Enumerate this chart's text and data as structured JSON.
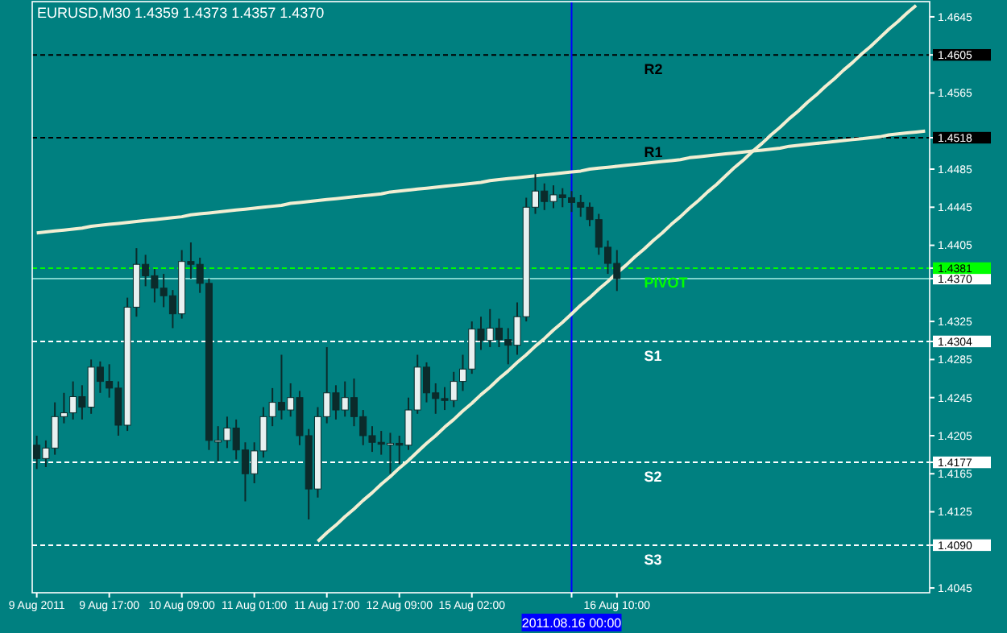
{
  "chart_data": {
    "type": "candlestick",
    "title": "EURUSD,M30  1.4359 1.4373 1.4357 1.4370",
    "color": "#0b2b2b",
    "categories": [
      "9 Aug 2011",
      null,
      null,
      null,
      null,
      null,
      null,
      null,
      "9 Aug 17:00",
      null,
      null,
      null,
      null,
      null,
      null,
      null,
      "10 Aug 09:00",
      null,
      null,
      null,
      null,
      null,
      null,
      null,
      "11 Aug 01:00",
      null,
      null,
      null,
      null,
      null,
      null,
      null,
      "11 Aug 17:00",
      null,
      null,
      null,
      null,
      null,
      null,
      null,
      "12 Aug 09:00",
      null,
      null,
      null,
      null,
      null,
      null,
      null,
      "15 Aug 02:00",
      null,
      null,
      null,
      null,
      null,
      null,
      null,
      null,
      null,
      null,
      "2011.08.16 00:00",
      null,
      null,
      null,
      null,
      "16 Aug 10:00",
      null,
      null,
      null,
      null,
      null,
      null,
      null,
      null,
      null,
      null,
      null,
      null,
      null,
      null,
      null,
      null,
      null,
      null,
      null,
      null,
      null,
      null,
      null,
      null,
      null,
      null,
      null,
      null,
      null,
      null,
      null,
      null,
      null,
      null
    ],
    "ohlc": [
      [
        1.4195,
        1.4205,
        1.417,
        1.4181
      ],
      [
        1.4181,
        1.42,
        1.4172,
        1.4192
      ],
      [
        1.4192,
        1.424,
        1.4185,
        1.4225
      ],
      [
        1.4225,
        1.425,
        1.4218,
        1.4229
      ],
      [
        1.4229,
        1.4262,
        1.4222,
        1.4246
      ],
      [
        1.4246,
        1.4258,
        1.4222,
        1.4235
      ],
      [
        1.4235,
        1.4285,
        1.4228,
        1.4277
      ],
      [
        1.4277,
        1.4283,
        1.425,
        1.4262
      ],
      [
        1.4262,
        1.428,
        1.4245,
        1.4255
      ],
      [
        1.4255,
        1.4262,
        1.4205,
        1.4216
      ],
      [
        1.4216,
        1.435,
        1.421,
        1.434
      ],
      [
        1.434,
        1.4402,
        1.433,
        1.4385
      ],
      [
        1.4385,
        1.4395,
        1.4362,
        1.4373
      ],
      [
        1.4373,
        1.438,
        1.4345,
        1.436
      ],
      [
        1.436,
        1.4375,
        1.434,
        1.4352
      ],
      [
        1.4352,
        1.4358,
        1.4318,
        1.4333
      ],
      [
        1.4333,
        1.44,
        1.4328,
        1.4388
      ],
      [
        1.4388,
        1.4408,
        1.437,
        1.4385
      ],
      [
        1.4385,
        1.4392,
        1.4355,
        1.4365
      ],
      [
        1.4365,
        1.437,
        1.419,
        1.42
      ],
      [
        1.42,
        1.4215,
        1.4178,
        1.42
      ],
      [
        1.42,
        1.4225,
        1.4192,
        1.4213
      ],
      [
        1.4213,
        1.4222,
        1.418,
        1.419
      ],
      [
        1.419,
        1.4198,
        1.4136,
        1.4165
      ],
      [
        1.4165,
        1.4198,
        1.4155,
        1.4189
      ],
      [
        1.4189,
        1.4235,
        1.4182,
        1.4225
      ],
      [
        1.4225,
        1.4255,
        1.4215,
        1.424
      ],
      [
        1.424,
        1.429,
        1.4222,
        1.4232
      ],
      [
        1.4232,
        1.426,
        1.4225,
        1.4245
      ],
      [
        1.4245,
        1.4252,
        1.4195,
        1.4205
      ],
      [
        1.4205,
        1.4212,
        1.4117,
        1.4149
      ],
      [
        1.4149,
        1.4235,
        1.414,
        1.4225
      ],
      [
        1.4225,
        1.4298,
        1.4218,
        1.425
      ],
      [
        1.425,
        1.4258,
        1.4222,
        1.4232
      ],
      [
        1.4232,
        1.4262,
        1.4225,
        1.4245
      ],
      [
        1.4245,
        1.4265,
        1.4215,
        1.4225
      ],
      [
        1.4225,
        1.4232,
        1.4195,
        1.4205
      ],
      [
        1.4205,
        1.4215,
        1.4188,
        1.4198
      ],
      [
        1.4198,
        1.421,
        1.4185,
        1.4196
      ],
      [
        1.4196,
        1.4208,
        1.4165,
        1.4197
      ],
      [
        1.4197,
        1.4205,
        1.4175,
        1.4195
      ],
      [
        1.4195,
        1.4245,
        1.419,
        1.4232
      ],
      [
        1.4232,
        1.429,
        1.4228,
        1.4277
      ],
      [
        1.4277,
        1.4282,
        1.424,
        1.425
      ],
      [
        1.425,
        1.426,
        1.4228,
        1.4244
      ],
      [
        1.4244,
        1.4256,
        1.4232,
        1.4242
      ],
      [
        1.4242,
        1.4272,
        1.4235,
        1.4262
      ],
      [
        1.4262,
        1.429,
        1.4252,
        1.4275
      ],
      [
        1.4275,
        1.4325,
        1.427,
        1.4317
      ],
      [
        1.4317,
        1.433,
        1.4295,
        1.4305
      ],
      [
        1.4305,
        1.4338,
        1.4298,
        1.4318
      ],
      [
        1.4318,
        1.4328,
        1.4298,
        1.4306
      ],
      [
        1.4306,
        1.4318,
        1.428,
        1.43
      ],
      [
        1.43,
        1.4345,
        1.429,
        1.433
      ],
      [
        1.433,
        1.4455,
        1.4325,
        1.4445
      ],
      [
        1.4445,
        1.448,
        1.4438,
        1.4462
      ],
      [
        1.4462,
        1.447,
        1.4442,
        1.4451
      ],
      [
        1.4451,
        1.4468,
        1.4444,
        1.4458
      ],
      [
        1.4458,
        1.4465,
        1.4445,
        1.4455
      ],
      [
        1.4455,
        1.4462,
        1.444,
        1.445
      ],
      [
        1.445,
        1.4458,
        1.4435,
        1.4445
      ],
      [
        1.4445,
        1.445,
        1.4425,
        1.4432
      ],
      [
        1.4432,
        1.4438,
        1.4395,
        1.4403
      ],
      [
        1.4403,
        1.441,
        1.4375,
        1.4386
      ],
      [
        1.4386,
        1.44,
        1.4357,
        1.437
      ],
      null,
      null,
      null,
      null,
      null,
      null,
      null,
      null,
      null,
      null,
      null,
      null,
      null,
      null,
      null,
      null,
      null,
      null,
      null,
      null,
      null,
      null,
      null,
      null,
      null,
      null,
      null,
      null,
      null,
      null,
      null,
      null,
      null,
      null
    ],
    "series": [
      {
        "type": "line",
        "color": "#f2eed2",
        "values": [
          1.4418,
          1.4419,
          1.442,
          1.4421,
          1.4422,
          1.4423,
          1.4425,
          1.4426,
          1.4427,
          1.4428,
          1.4429,
          1.443,
          1.4431,
          1.4432,
          1.4433,
          1.4434,
          1.4435,
          1.4437,
          1.4438,
          1.4439,
          1.444,
          1.4441,
          1.4442,
          1.4443,
          1.4444,
          1.4445,
          1.4446,
          1.4447,
          1.4449,
          1.445,
          1.4451,
          1.4452,
          1.4453,
          1.4454,
          1.4455,
          1.4456,
          1.4457,
          1.4458,
          1.4459,
          1.4461,
          1.4462,
          1.4463,
          1.4464,
          1.4465,
          1.4466,
          1.4467,
          1.4468,
          1.4469,
          1.447,
          1.4471,
          1.4473,
          1.4474,
          1.4475,
          1.4476,
          1.4477,
          1.4478,
          1.4479,
          1.448,
          1.4481,
          1.4482,
          1.4483,
          1.4485,
          1.4486,
          1.4487,
          1.4488,
          1.4489,
          1.449,
          1.4491,
          1.4492,
          1.4493,
          1.4494,
          1.4495,
          1.4497,
          1.4498,
          1.4499,
          1.45,
          1.4501,
          1.4502,
          1.4503,
          1.4504,
          1.4505,
          1.4506,
          1.4507,
          1.4509,
          1.451,
          1.4511,
          1.4512,
          1.4513,
          1.4514,
          1.4515,
          1.4516,
          1.4517,
          1.4518,
          1.4519,
          1.4521,
          1.4522,
          1.4523,
          1.4524,
          1.4525
        ]
      },
      {
        "type": "line",
        "color": "#f2eed2",
        "values": [
          null,
          null,
          null,
          null,
          null,
          null,
          null,
          null,
          null,
          null,
          null,
          null,
          null,
          null,
          null,
          null,
          null,
          null,
          null,
          null,
          null,
          null,
          null,
          null,
          null,
          null,
          null,
          null,
          null,
          null,
          null,
          1.4094,
          1.4103,
          1.4111,
          1.412,
          1.4128,
          1.4137,
          1.4145,
          1.4154,
          1.4162,
          1.4171,
          1.4179,
          1.4188,
          1.4197,
          1.4205,
          1.4214,
          1.4222,
          1.4231,
          1.4239,
          1.4248,
          1.4256,
          1.4265,
          1.4273,
          1.4282,
          1.429,
          1.4299,
          1.4307,
          1.4316,
          1.4324,
          1.4333,
          1.4342,
          1.435,
          1.4359,
          1.4367,
          1.4376,
          1.4384,
          1.4393,
          1.4401,
          1.441,
          1.4418,
          1.4427,
          1.4435,
          1.4444,
          1.4452,
          1.4461,
          1.4469,
          1.4478,
          1.4487,
          1.4495,
          1.4504,
          1.4512,
          1.4521,
          1.4529,
          1.4538,
          1.4546,
          1.4555,
          1.4563,
          1.4572,
          1.458,
          1.4589,
          1.4597,
          1.4606,
          1.4614,
          1.4623,
          1.4632,
          1.464,
          1.4649,
          1.4657,
          null
        ]
      }
    ],
    "ylim": [
      1.404,
      1.4661
    ],
    "yticks": [
      1.4045,
      {
        "value": 1.409,
        "label": "1.4090"
      },
      1.4125,
      1.4165,
      1.4177,
      1.4205,
      1.4245,
      1.4285,
      1.4304,
      1.4325,
      {
        "value": 1.437,
        "label": "1.4370"
      },
      1.4381,
      1.4405,
      1.4445,
      1.4485,
      1.4518,
      1.4565,
      1.4605,
      1.4645
    ],
    "ref_lines": [
      {
        "axis": "y",
        "value": 1.4605,
        "label": "R2",
        "color": "#000000",
        "line_style": "dashed"
      },
      {
        "axis": "y",
        "value": 1.4518,
        "label": "R1",
        "color": "#000000",
        "line_style": "dashed"
      },
      {
        "axis": "y",
        "value": 1.4381,
        "label": "PIVOT",
        "color": "#00ff00",
        "line_style": "dashed"
      },
      {
        "axis": "y",
        "value": 1.437,
        "label": null,
        "color": "#7fd4cc",
        "line_style": "solid"
      },
      {
        "axis": "y",
        "value": 1.4304,
        "label": "S1",
        "color": "#ffffff",
        "line_style": "dashed"
      },
      {
        "axis": "y",
        "value": 1.4177,
        "label": "S2",
        "color": "#ffffff",
        "line_style": "dashed"
      },
      {
        "axis": "y",
        "value": 1.409,
        "label": "S3",
        "color": "#ffffff",
        "line_style": "dashed"
      },
      {
        "axis": "x",
        "value": "2011.08.16 00:00",
        "color": "#0000ff",
        "line_style": "solid"
      }
    ]
  }
}
